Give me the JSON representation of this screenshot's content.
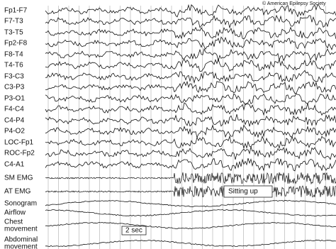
{
  "copyright": "© American Epilepsy Society",
  "channels": [
    "Fp1-F7",
    "F7-T3",
    "T3-T5",
    "Fp2-F8",
    "F8-T4",
    "T4-T6",
    "F3-C3",
    "C3-P3",
    "P3-O1",
    "F4-C4",
    "C4-P4",
    "P4-O2",
    "LOC-Fp1",
    "ROC-Fp2",
    "C4-A1",
    "SM EMG",
    "AT EMG",
    "Sonogram",
    "Airflow",
    [
      "Chest",
      "movement"
    ],
    [
      "Abdominal",
      "movement"
    ]
  ],
  "annotations": {
    "event": "Sitting up",
    "scale": "2 sec"
  }
}
